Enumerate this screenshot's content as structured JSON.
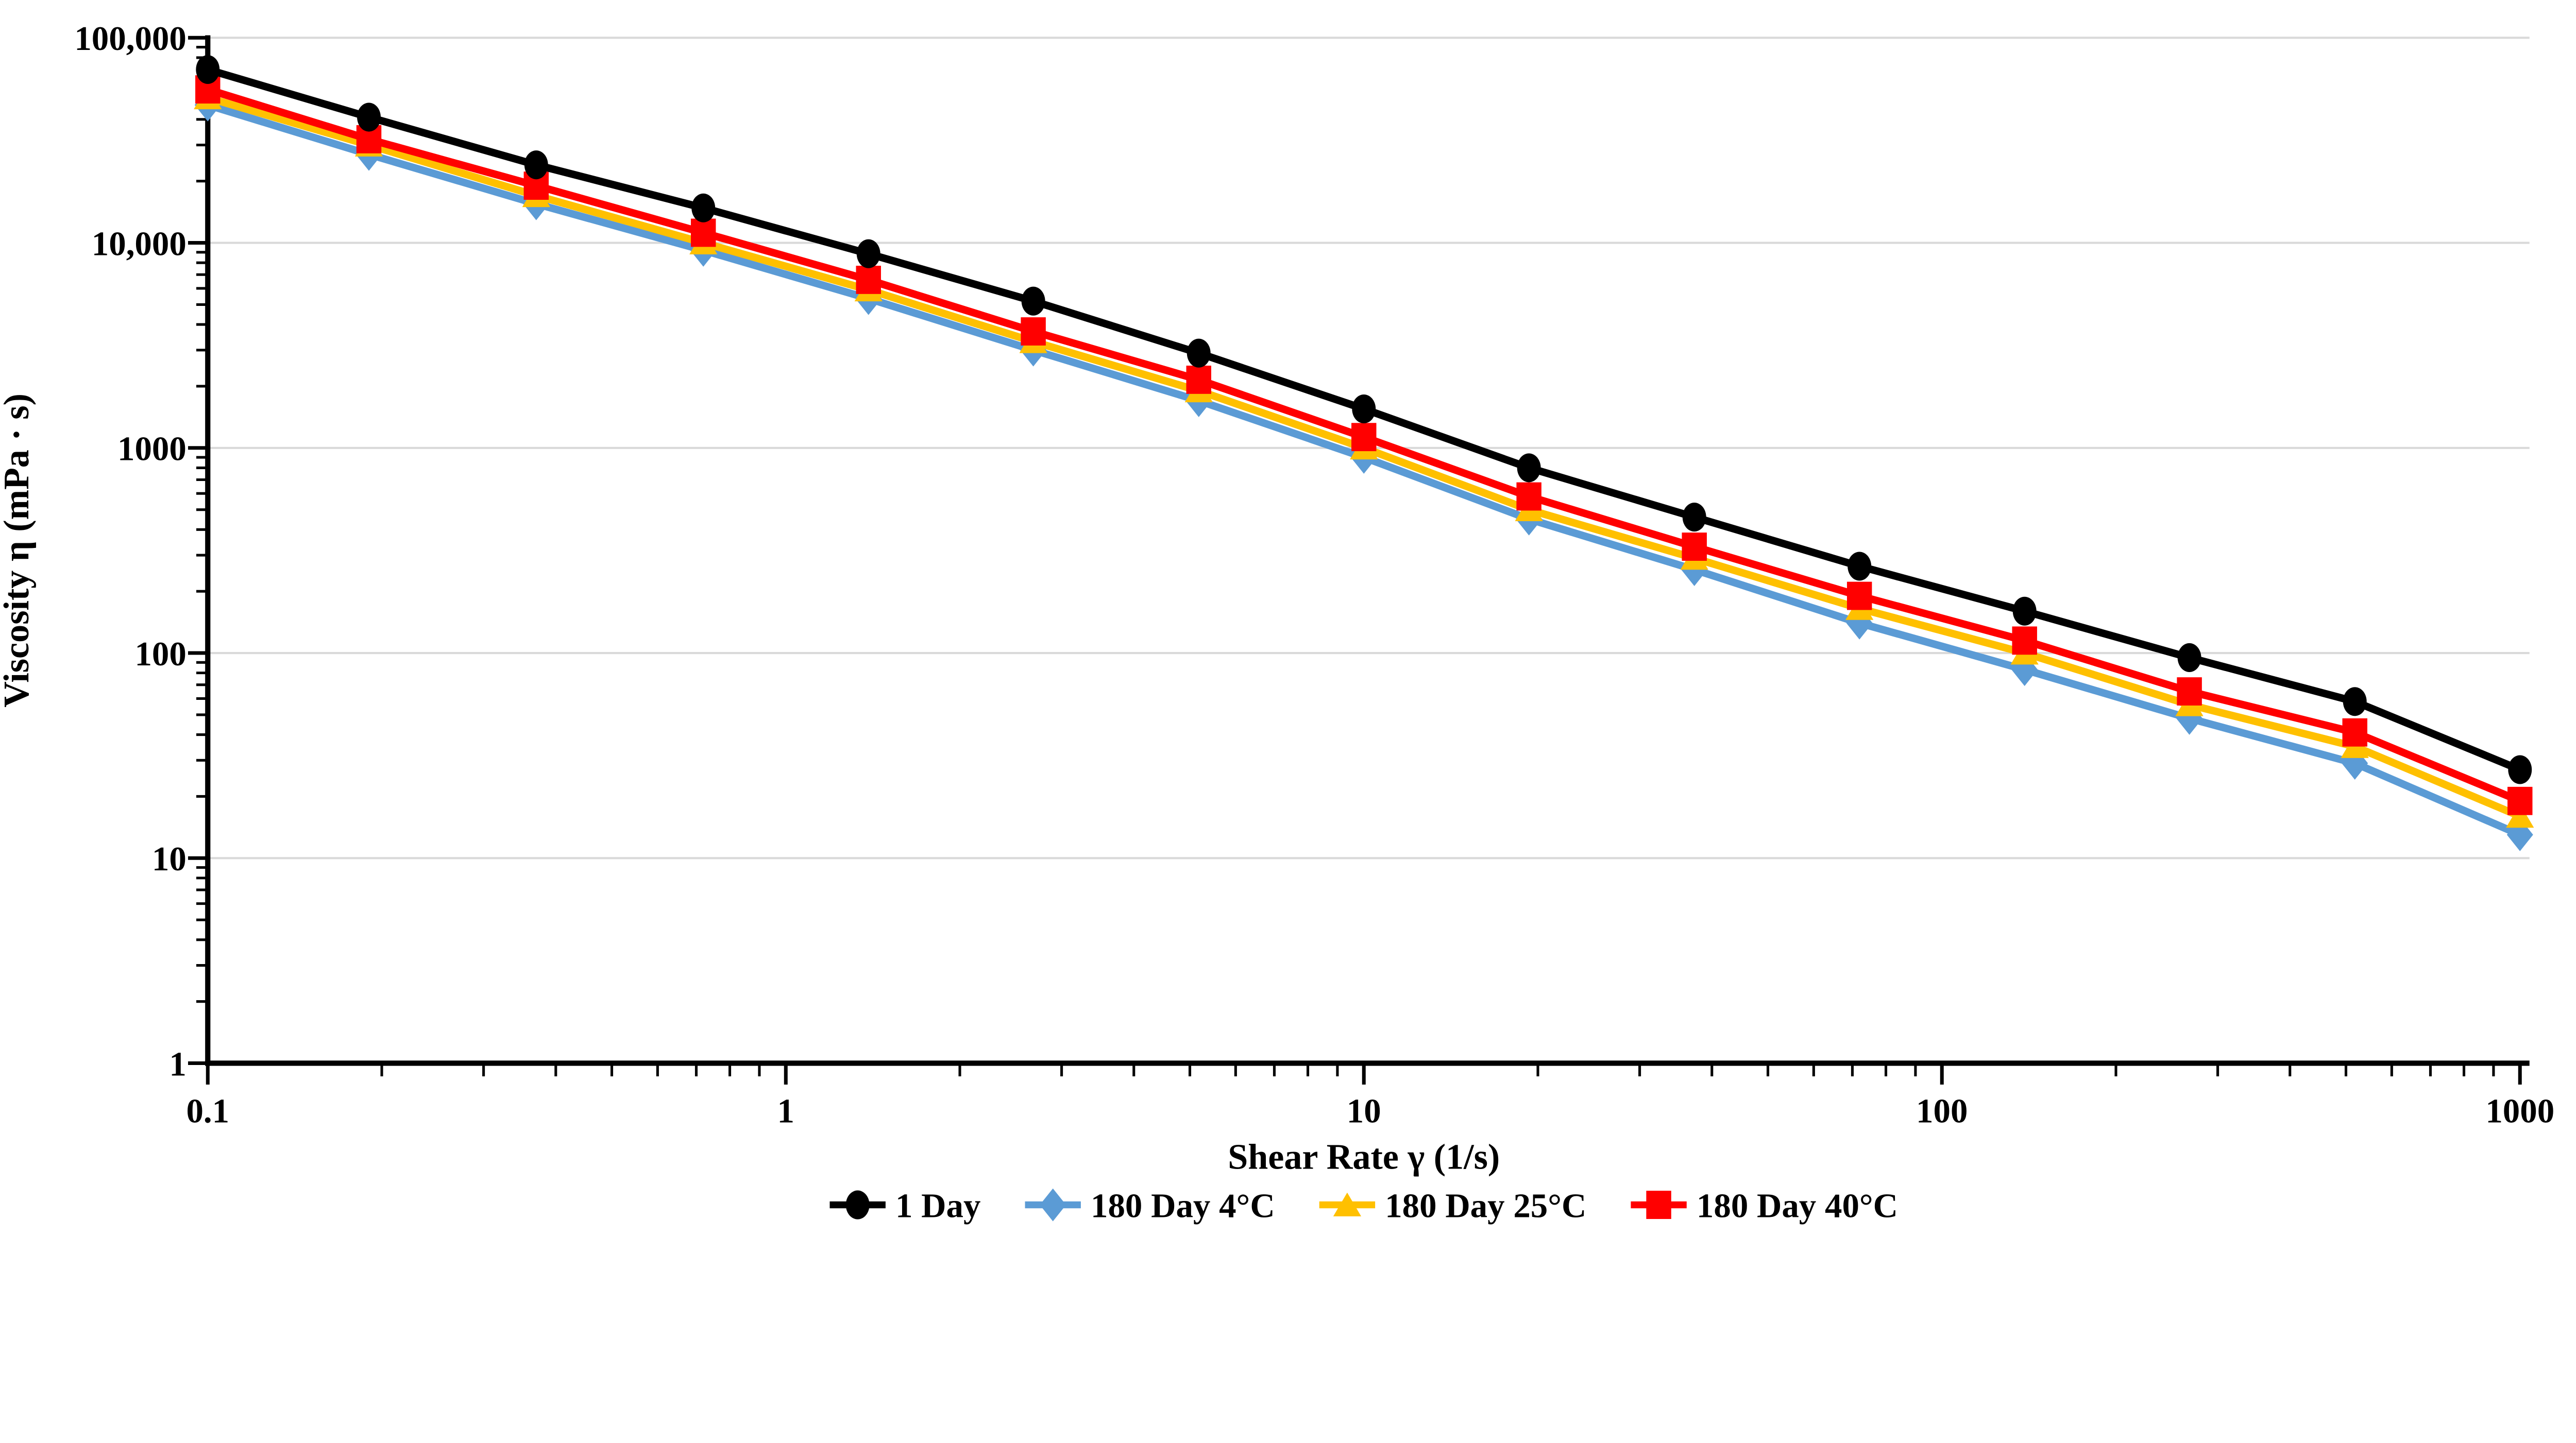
{
  "colors": {
    "background": "#FFFFFF",
    "gridline": "#D9D9D9",
    "axis": "#000000",
    "text": "#000000"
  },
  "chart_data": {
    "type": "line",
    "title": "",
    "xlabel": "Shear Rate γ (1/s)",
    "ylabel": "Viscosity η (mPa · s)",
    "x_scale": "log",
    "y_scale": "log",
    "xlim": [
      0.1,
      1000
    ],
    "ylim": [
      1,
      100000
    ],
    "grid": "horizontal-only",
    "legend_position": "bottom",
    "x_ticks": [
      {
        "value": 0.1,
        "label": "0.1"
      },
      {
        "value": 1,
        "label": "1"
      },
      {
        "value": 10,
        "label": "10"
      },
      {
        "value": 100,
        "label": "100"
      },
      {
        "value": 1000,
        "label": "1000"
      }
    ],
    "y_ticks": [
      {
        "value": 100000,
        "label": "100,000"
      },
      {
        "value": 10000,
        "label": "10,000"
      },
      {
        "value": 1000,
        "label": "1000"
      },
      {
        "value": 100,
        "label": "100"
      },
      {
        "value": 10,
        "label": "10"
      },
      {
        "value": 1,
        "label": "1"
      }
    ],
    "x": [
      0.1,
      0.19,
      0.37,
      0.72,
      1.39,
      2.68,
      5.18,
      10,
      19.3,
      37.3,
      72,
      139,
      268,
      518,
      1000
    ],
    "series": [
      {
        "name": "1 Day",
        "color": "#000000",
        "marker": "circle",
        "values": [
          70000,
          41000,
          24000,
          14800,
          8850,
          5200,
          2900,
          1550,
          800,
          460,
          265,
          160,
          95,
          58,
          27
        ]
      },
      {
        "name": "180 Day 4°C",
        "color": "#5B9BD5",
        "marker": "diamond",
        "values": [
          47000,
          27000,
          15500,
          9200,
          5350,
          3000,
          1700,
          900,
          450,
          255,
          140,
          83,
          48,
          29,
          13
        ]
      },
      {
        "name": "180 Day 25°C",
        "color": "#FFC000",
        "marker": "triangle",
        "values": [
          51000,
          30000,
          17000,
          10000,
          5900,
          3300,
          1900,
          1000,
          500,
          290,
          165,
          100,
          56,
          35,
          16
        ]
      },
      {
        "name": "180 Day 40°C",
        "color": "#FF0000",
        "marker": "square",
        "values": [
          56000,
          32000,
          19000,
          11200,
          6600,
          3700,
          2150,
          1130,
          580,
          330,
          190,
          115,
          65,
          41,
          19
        ]
      }
    ],
    "draw_order_indices": [
      1,
      2,
      3,
      0
    ]
  }
}
